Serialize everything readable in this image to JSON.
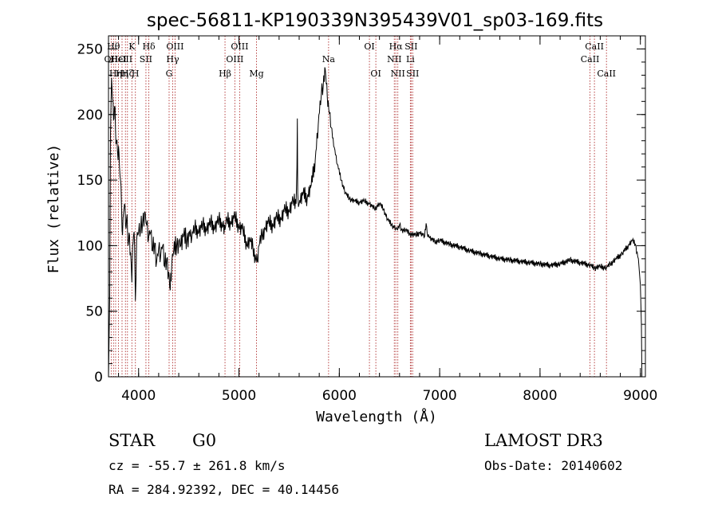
{
  "colors": {
    "axis": "#000000",
    "spectrum": "#000000",
    "line_marker": "#b03030",
    "background": "#ffffff"
  },
  "chart_data": {
    "type": "line",
    "title": "spec-56811-KP190339N395439V01_sp03-169.fits",
    "xlabel": "Wavelength (Å)",
    "ylabel": "Flux (relative)",
    "xlim": [
      3700,
      9050
    ],
    "ylim": [
      0,
      260
    ],
    "xticks": [
      4000,
      5000,
      6000,
      7000,
      8000,
      9000
    ],
    "yticks": [
      0,
      50,
      100,
      150,
      200,
      250
    ],
    "x_minor_step": 200,
    "y_minor_step": 10,
    "series": [
      {
        "name": "flux",
        "points": [
          [
            3700,
            0
          ],
          [
            3712,
            60
          ],
          [
            3720,
            185
          ],
          [
            3730,
            228
          ],
          [
            3740,
            212
          ],
          [
            3750,
            196
          ],
          [
            3760,
            206
          ],
          [
            3770,
            188
          ],
          [
            3780,
            180
          ],
          [
            3790,
            172
          ],
          [
            3800,
            176
          ],
          [
            3810,
            160
          ],
          [
            3820,
            150
          ],
          [
            3830,
            128
          ],
          [
            3840,
            108
          ],
          [
            3850,
            125
          ],
          [
            3860,
            132
          ],
          [
            3870,
            115
          ],
          [
            3880,
            120
          ],
          [
            3890,
            110
          ],
          [
            3900,
            103
          ],
          [
            3910,
            108
          ],
          [
            3920,
            95
          ],
          [
            3933,
            72
          ],
          [
            3940,
            100
          ],
          [
            3950,
            108
          ],
          [
            3960,
            100
          ],
          [
            3968,
            58
          ],
          [
            3980,
            104
          ],
          [
            4000,
            110
          ],
          [
            4020,
            112
          ],
          [
            4040,
            118
          ],
          [
            4060,
            126
          ],
          [
            4080,
            116
          ],
          [
            4100,
            106
          ],
          [
            4120,
            110
          ],
          [
            4140,
            96
          ],
          [
            4160,
            102
          ],
          [
            4180,
            88
          ],
          [
            4200,
            98
          ],
          [
            4220,
            92
          ],
          [
            4240,
            100
          ],
          [
            4260,
            84
          ],
          [
            4280,
            90
          ],
          [
            4300,
            80
          ],
          [
            4315,
            66
          ],
          [
            4330,
            86
          ],
          [
            4350,
            96
          ],
          [
            4380,
            100
          ],
          [
            4400,
            104
          ],
          [
            4420,
            100
          ],
          [
            4450,
            108
          ],
          [
            4480,
            103
          ],
          [
            4500,
            110
          ],
          [
            4530,
            106
          ],
          [
            4560,
            114
          ],
          [
            4600,
            110
          ],
          [
            4640,
            116
          ],
          [
            4680,
            112
          ],
          [
            4720,
            118
          ],
          [
            4760,
            113
          ],
          [
            4800,
            120
          ],
          [
            4840,
            115
          ],
          [
            4861,
            112
          ],
          [
            4880,
            120
          ],
          [
            4920,
            117
          ],
          [
            4960,
            122
          ],
          [
            5000,
            114
          ],
          [
            5040,
            112
          ],
          [
            5080,
            100
          ],
          [
            5110,
            104
          ],
          [
            5140,
            98
          ],
          [
            5167,
            90
          ],
          [
            5183,
            88
          ],
          [
            5200,
            100
          ],
          [
            5230,
            108
          ],
          [
            5260,
            113
          ],
          [
            5300,
            118
          ],
          [
            5340,
            115
          ],
          [
            5380,
            122
          ],
          [
            5420,
            120
          ],
          [
            5460,
            128
          ],
          [
            5500,
            126
          ],
          [
            5540,
            134
          ],
          [
            5570,
            132
          ],
          [
            5578,
            160
          ],
          [
            5582,
            197
          ],
          [
            5586,
            140
          ],
          [
            5600,
            132
          ],
          [
            5640,
            140
          ],
          [
            5680,
            136
          ],
          [
            5720,
            146
          ],
          [
            5760,
            165
          ],
          [
            5790,
            192
          ],
          [
            5820,
            215
          ],
          [
            5840,
            222
          ],
          [
            5855,
            236
          ],
          [
            5865,
            230
          ],
          [
            5880,
            214
          ],
          [
            5895,
            204
          ],
          [
            5920,
            190
          ],
          [
            5950,
            175
          ],
          [
            5980,
            162
          ],
          [
            6020,
            150
          ],
          [
            6060,
            140
          ],
          [
            6100,
            136
          ],
          [
            6150,
            134
          ],
          [
            6200,
            133
          ],
          [
            6250,
            134
          ],
          [
            6300,
            132
          ],
          [
            6350,
            128
          ],
          [
            6400,
            132
          ],
          [
            6440,
            128
          ],
          [
            6480,
            120
          ],
          [
            6520,
            116
          ],
          [
            6563,
            113
          ],
          [
            6580,
            112
          ],
          [
            6600,
            116
          ],
          [
            6620,
            112
          ],
          [
            6660,
            112
          ],
          [
            6700,
            109
          ],
          [
            6760,
            108
          ],
          [
            6800,
            110
          ],
          [
            6850,
            107
          ],
          [
            6865,
            117
          ],
          [
            6875,
            110
          ],
          [
            6900,
            106
          ],
          [
            6950,
            103
          ],
          [
            7000,
            104
          ],
          [
            7100,
            101
          ],
          [
            7200,
            99
          ],
          [
            7300,
            96
          ],
          [
            7400,
            94
          ],
          [
            7500,
            92
          ],
          [
            7600,
            90
          ],
          [
            7700,
            89
          ],
          [
            7800,
            88
          ],
          [
            7900,
            87
          ],
          [
            8000,
            86
          ],
          [
            8100,
            85
          ],
          [
            8200,
            86
          ],
          [
            8300,
            89
          ],
          [
            8400,
            87
          ],
          [
            8500,
            85
          ],
          [
            8540,
            83
          ],
          [
            8600,
            84
          ],
          [
            8662,
            83
          ],
          [
            8700,
            86
          ],
          [
            8760,
            90
          ],
          [
            8820,
            94
          ],
          [
            8880,
            100
          ],
          [
            8920,
            104
          ],
          [
            8950,
            101
          ],
          [
            8980,
            90
          ],
          [
            9000,
            70
          ],
          [
            9010,
            40
          ],
          [
            9015,
            0
          ]
        ]
      }
    ],
    "line_markers": [
      {
        "wavelength": 3727,
        "label": "OII",
        "row": 2
      },
      {
        "wavelength": 3750,
        "label": "Hθ",
        "row": 1
      },
      {
        "wavelength": 3771,
        "label": "Hη",
        "row": 3
      },
      {
        "wavelength": 3799,
        "label": "HeI",
        "row": 2
      },
      {
        "wavelength": 3835,
        "label": "Hη",
        "row": 3
      },
      {
        "wavelength": 3869,
        "label": "OII",
        "row": 2
      },
      {
        "wavelength": 3889,
        "label": "Hζ",
        "row": 3
      },
      {
        "wavelength": 3933,
        "label": "K",
        "row": 1
      },
      {
        "wavelength": 3968,
        "label": "H",
        "row": 3
      },
      {
        "wavelength": 4073,
        "label": "SII",
        "row": 2
      },
      {
        "wavelength": 4102,
        "label": "Hδ",
        "row": 1
      },
      {
        "wavelength": 4304,
        "label": "G",
        "row": 3
      },
      {
        "wavelength": 4340,
        "label": "Hγ",
        "row": 2
      },
      {
        "wavelength": 4363,
        "label": "OIII",
        "row": 1
      },
      {
        "wavelength": 4861,
        "label": "Hβ",
        "row": 3
      },
      {
        "wavelength": 4959,
        "label": "OIII",
        "row": 2
      },
      {
        "wavelength": 5007,
        "label": "OIII",
        "row": 1
      },
      {
        "wavelength": 5175,
        "label": "Mg",
        "row": 3
      },
      {
        "wavelength": 5893,
        "label": "Na",
        "row": 2
      },
      {
        "wavelength": 6300,
        "label": "OI",
        "row": 1
      },
      {
        "wavelength": 6364,
        "label": "OI",
        "row": 3
      },
      {
        "wavelength": 6548,
        "label": "NII",
        "row": 2
      },
      {
        "wavelength": 6563,
        "label": "Hα",
        "row": 1
      },
      {
        "wavelength": 6583,
        "label": "NII",
        "row": 3
      },
      {
        "wavelength": 6708,
        "label": "Li",
        "row": 2
      },
      {
        "wavelength": 6716,
        "label": "SII",
        "row": 1
      },
      {
        "wavelength": 6731,
        "label": "SII",
        "row": 3
      },
      {
        "wavelength": 8498,
        "label": "CaII",
        "row": 2
      },
      {
        "wavelength": 8542,
        "label": "CaII",
        "row": 1
      },
      {
        "wavelength": 8662,
        "label": "CaII",
        "row": 3
      }
    ]
  },
  "info": {
    "class": "STAR",
    "subclass": "G0",
    "survey": "LAMOST DR3",
    "cz": "cz = -55.7 ± 261.8 km/s",
    "obs_date": "Obs-Date: 20140602",
    "coords": "RA = 284.92392, DEC =  40.14456"
  }
}
